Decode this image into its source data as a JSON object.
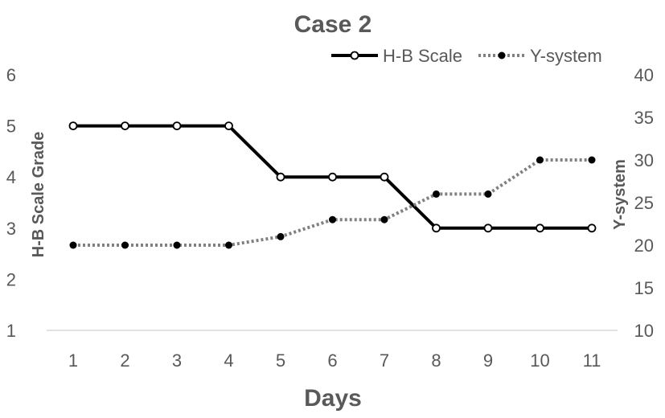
{
  "chart_data": {
    "type": "line",
    "title": "Case 2",
    "xlabel": "Days",
    "ylabel_left": "H-B Scale Grade",
    "ylabel_right": "Y-system",
    "x": [
      "1",
      "2",
      "3",
      "4",
      "5",
      "6",
      "7",
      "8",
      "9",
      "10",
      "11"
    ],
    "series": [
      {
        "name": "H-B Scale",
        "axis": "left",
        "style": "solid",
        "marker": "open-circle",
        "color": "#000000",
        "values": [
          5,
          5,
          5,
          5,
          4,
          4,
          4,
          3,
          3,
          3,
          3
        ]
      },
      {
        "name": "Y-system",
        "axis": "right",
        "style": "dotted",
        "marker": "filled-circle",
        "color": "#808080",
        "values": [
          20,
          20,
          20,
          20,
          21,
          23,
          23,
          26,
          26,
          30,
          30
        ]
      }
    ],
    "ylim_left": [
      1,
      6
    ],
    "ylim_right": [
      10,
      40
    ],
    "yticks_left": [
      "1",
      "2",
      "3",
      "4",
      "5",
      "6"
    ],
    "yticks_right": [
      "10",
      "15",
      "20",
      "25",
      "30",
      "35",
      "40"
    ],
    "legend": "top-right",
    "grid": false
  }
}
